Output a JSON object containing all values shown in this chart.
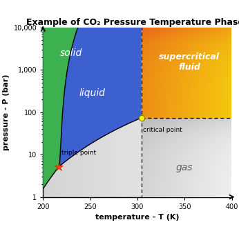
{
  "title": "Example of CO₂ Pressure Temperature Phases",
  "xlabel": "temperature - T (K)",
  "ylabel": "pressure - P (bar)",
  "xlim": [
    200,
    400
  ],
  "ylim_log": [
    1,
    10000
  ],
  "triple_point": [
    216.8,
    5.185
  ],
  "critical_point": [
    304.2,
    73.8
  ],
  "x_ticks": [
    200,
    250,
    300,
    350,
    400
  ],
  "y_ticks": [
    1,
    10,
    100,
    1000,
    10000
  ],
  "y_tick_labels": [
    "1",
    "10",
    "100",
    "1,000",
    "10,000"
  ],
  "color_solid": "#3db050",
  "color_liquid": "#3d60d0",
  "color_gas_light": "#e0e0e0",
  "color_gas_dark": "#909090",
  "color_sc_orange": "#e8601a",
  "color_sc_yellow": "#f5c010",
  "label_solid": "solid",
  "label_liquid": "liquid",
  "label_gas": "gas",
  "label_supercritical": "supercritical\nfluid",
  "label_triple": "triple point",
  "label_critical": "critical point",
  "title_fontsize": 9,
  "axis_label_fontsize": 8,
  "phase_label_fontsize": 10,
  "tick_fontsize": 7
}
